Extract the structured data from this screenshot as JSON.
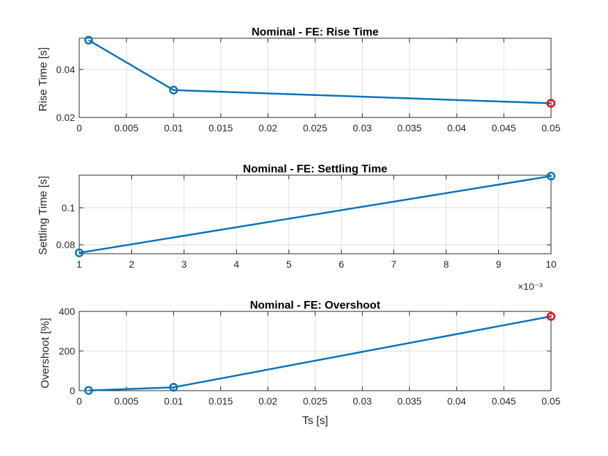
{
  "chart_data": [
    {
      "type": "line",
      "title": "Nominal - FE: Rise Time",
      "xlabel": "",
      "ylabel": "Rise Time [s]",
      "xlim": [
        0,
        0.05
      ],
      "ylim": [
        0.02,
        0.053
      ],
      "x_ticks": [
        "0",
        "0.005",
        "0.01",
        "0.015",
        "0.02",
        "0.025",
        "0.03",
        "0.035",
        "0.04",
        "0.045",
        "0.05"
      ],
      "x_tick_values": [
        0,
        0.005,
        0.01,
        0.015,
        0.02,
        0.025,
        0.03,
        0.035,
        0.04,
        0.045,
        0.05
      ],
      "y_ticks": [
        "0.02",
        "0.04"
      ],
      "y_tick_values": [
        0.02,
        0.04
      ],
      "x_exponent": "",
      "grid": true,
      "series": [
        {
          "x": [
            0.001,
            0.01,
            0.05
          ],
          "values": [
            0.0522,
            0.0314,
            0.0259
          ],
          "color": "#0072BD"
        }
      ],
      "highlight": {
        "x": 0.05,
        "y": 0.0259,
        "color": "#FF0000"
      }
    },
    {
      "type": "line",
      "title": "Nominal - FE: Settling Time",
      "xlabel": "",
      "ylabel": "Settling Time [s]",
      "xlim": [
        1,
        10
      ],
      "ylim": [
        0.0752,
        0.1176
      ],
      "x_ticks": [
        "1",
        "2",
        "3",
        "4",
        "5",
        "6",
        "7",
        "8",
        "9",
        "10"
      ],
      "x_tick_values": [
        1,
        2,
        3,
        4,
        5,
        6,
        7,
        8,
        9,
        10
      ],
      "y_ticks": [
        "0.08",
        "0.1"
      ],
      "y_tick_values": [
        0.08,
        0.1
      ],
      "x_exponent": "×10⁻³",
      "grid": true,
      "series": [
        {
          "x": [
            1,
            10
          ],
          "values": [
            0.0757,
            0.1171
          ],
          "color": "#0072BD"
        }
      ]
    },
    {
      "type": "line",
      "title": "Nominal - FE: Overshoot",
      "xlabel": "Ts [s]",
      "ylabel": "Overshoot [%]",
      "xlim": [
        0,
        0.05
      ],
      "ylim": [
        0,
        400
      ],
      "x_ticks": [
        "0",
        "0.005",
        "0.01",
        "0.015",
        "0.02",
        "0.025",
        "0.03",
        "0.035",
        "0.04",
        "0.045",
        "0.05"
      ],
      "x_tick_values": [
        0,
        0.005,
        0.01,
        0.015,
        0.02,
        0.025,
        0.03,
        0.035,
        0.04,
        0.045,
        0.05
      ],
      "y_ticks": [
        "0",
        "200",
        "400"
      ],
      "y_tick_values": [
        0,
        200,
        400
      ],
      "x_exponent": "",
      "grid": true,
      "series": [
        {
          "x": [
            0.001,
            0.01,
            0.05
          ],
          "values": [
            1,
            17,
            375
          ],
          "color": "#0072BD"
        }
      ],
      "highlight": {
        "x": 0.05,
        "y": 375,
        "color": "#FF0000"
      }
    }
  ]
}
